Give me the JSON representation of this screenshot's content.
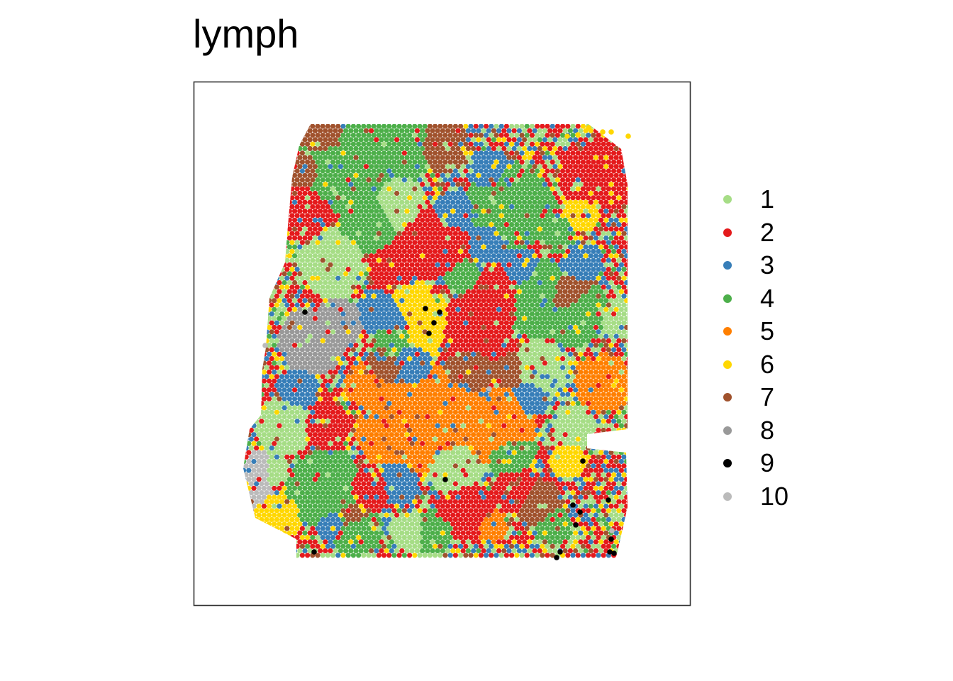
{
  "chart_data": {
    "type": "scatter",
    "title": "lymph",
    "xlabel": "",
    "ylabel": "",
    "grid": false,
    "axes_visible": false,
    "legend_position": "right",
    "point_shape": "circle",
    "panel_border": true,
    "categories": [
      "1",
      "2",
      "3",
      "4",
      "5",
      "6",
      "7",
      "8",
      "9",
      "10"
    ],
    "colors": {
      "1": "#A6DD86",
      "2": "#E41A1C",
      "3": "#377EB8",
      "4": "#4DAF4A",
      "5": "#FF7F00",
      "6": "#FFD700",
      "7": "#A0522D",
      "8": "#999999",
      "9": "#000000",
      "10": "#BBBBBB"
    }
  }
}
